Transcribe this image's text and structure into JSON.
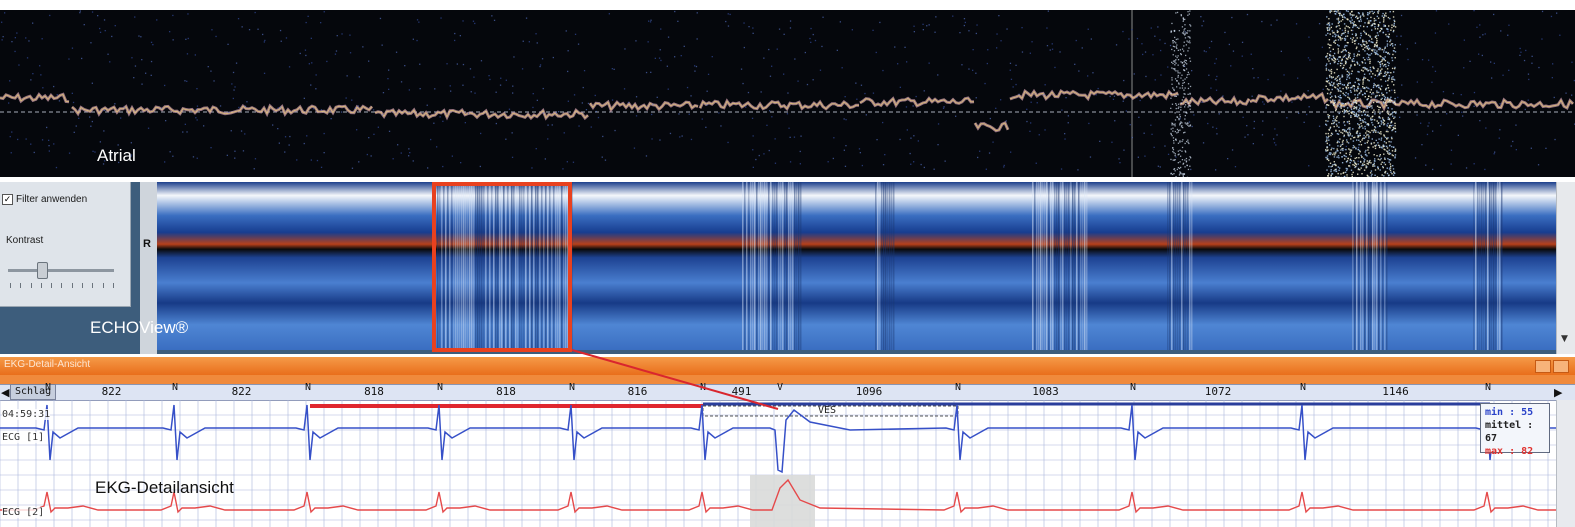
{
  "panels": {
    "atrial": {
      "caption": "Atrial"
    },
    "echo": {
      "caption": "ECHOView®",
      "filter_label": "Filter anwenden",
      "filter_checked": true,
      "filter_check_glyph": "✓",
      "contrast_label": "Kontrast",
      "contrast_level": 0.3,
      "axis_label": "R",
      "highlight_color": "#e8411f"
    },
    "ekg": {
      "caption": "EKG-Detailansicht",
      "window_title": "EKG-Detail-Ansicht",
      "schlag_label": "Schlag",
      "start_time": "04:59:31",
      "lead1_label": "ECG [1]",
      "lead2_label": "ECG [2]",
      "ves_label": "VES",
      "stats": {
        "min_label": "min : 55",
        "mittel_label": "mittel : 67",
        "max_label": "max : 82"
      },
      "beat_labels": [
        "N",
        "N",
        "N",
        "N",
        "N",
        "N",
        "V",
        "N",
        "N",
        "N",
        "N"
      ],
      "rr_intervals": [
        "822",
        "822",
        "818",
        "818",
        "816",
        "491",
        "1096",
        "1083",
        "1072",
        "1146"
      ],
      "colors": {
        "lead1": "#3650c8",
        "lead2": "#e5494a",
        "grid": "#a9b6dc",
        "titlebar": "#ee7d2c"
      }
    }
  }
}
